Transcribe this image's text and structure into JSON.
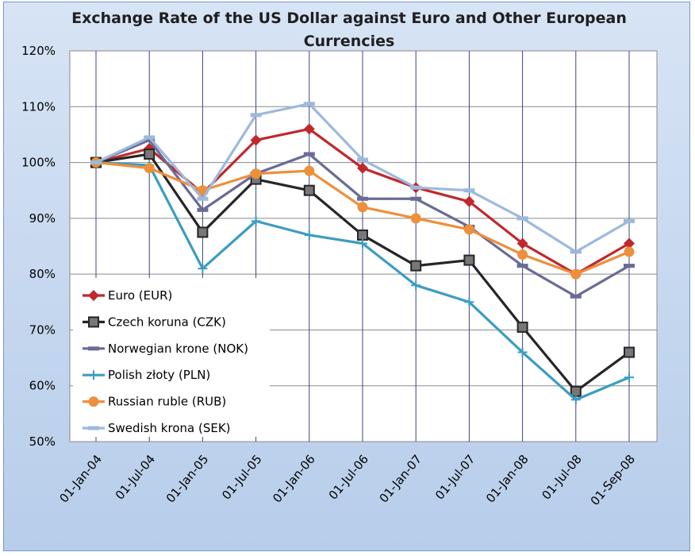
{
  "chart_data": {
    "type": "line",
    "title_lines": [
      "Exchange Rate of the US Dollar against Euro and Other European",
      "Currencies"
    ],
    "xlabel": "",
    "ylabel": "",
    "categories": [
      "01-Jan-04",
      "01-Jul-04",
      "01-Jan-05",
      "01-Jul-05",
      "01-Jan-06",
      "01-Jul-06",
      "01-Jan-07",
      "01-Jul-07",
      "01-Jan-08",
      "01-Jul-08",
      "01-Sep-08"
    ],
    "ylim": [
      50,
      120
    ],
    "yticks": [
      50,
      60,
      70,
      80,
      90,
      100,
      110,
      120
    ],
    "ytick_labels": [
      "50%",
      "60%",
      "70%",
      "80%",
      "90%",
      "100%",
      "110%",
      "120%"
    ],
    "grid": true,
    "legend_position": "left",
    "series": [
      {
        "name": "Euro (EUR)",
        "color": "#c0282d",
        "marker": "diamond",
        "values": [
          100,
          102.5,
          94.5,
          104,
          106,
          99,
          95.5,
          93,
          85.5,
          80,
          85.5
        ]
      },
      {
        "name": "Czech koruna (CZK)",
        "color": "#262626",
        "marker": "square",
        "values": [
          100,
          101.5,
          87.5,
          97,
          95,
          87,
          81.5,
          82.5,
          70.5,
          59,
          66
        ]
      },
      {
        "name": "Norwegian krone (NOK)",
        "color": "#6a6b96",
        "marker": "dash",
        "values": [
          100,
          104,
          91.5,
          98,
          101.5,
          93.5,
          93.5,
          88.5,
          81.5,
          76,
          81.5
        ]
      },
      {
        "name": "Polish złoty (PLN)",
        "color": "#3c9cc2",
        "marker": "plus",
        "values": [
          100,
          99.5,
          81,
          89.5,
          87,
          85.5,
          78,
          75,
          66,
          57.5,
          61.5
        ]
      },
      {
        "name": "Russian ruble (RUB)",
        "color": "#ee8f3c",
        "marker": "circle",
        "values": [
          100,
          99,
          95,
          98,
          98.5,
          92,
          90,
          88,
          83.5,
          80,
          84
        ]
      },
      {
        "name": "Swedish krona (SEK)",
        "color": "#9db9dc",
        "marker": "dash",
        "values": [
          100,
          104.5,
          93.5,
          108.5,
          110.5,
          100.5,
          95.5,
          95,
          90,
          84,
          89.5
        ]
      }
    ]
  }
}
